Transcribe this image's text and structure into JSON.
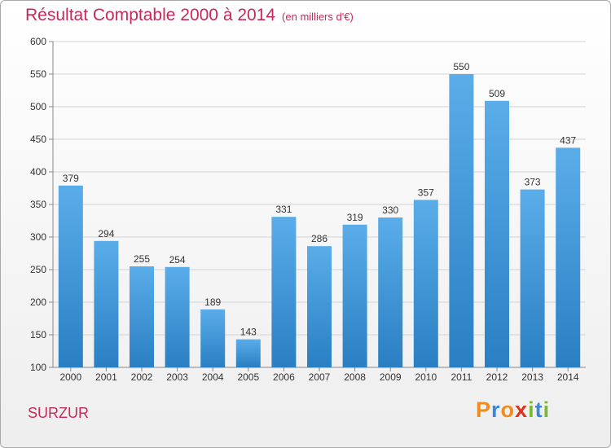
{
  "header": {
    "title": "Résultat Comptable 2000 à 2014",
    "subtitle": "(en milliers d'€)"
  },
  "footer": {
    "city": "SURZUR",
    "logo": "Proxiti"
  },
  "colors": {
    "title": "#c8285a",
    "bar_top": "#5aade9",
    "bar_bottom": "#2a7fc2",
    "logo_letters": [
      "#f08c1e",
      "#3a86d8",
      "#f08c1e",
      "#e0311e",
      "#7ab831",
      "#3a86d8",
      "#7ab831"
    ]
  },
  "chart_data": {
    "type": "bar",
    "categories": [
      "2000",
      "2001",
      "2002",
      "2003",
      "2004",
      "2005",
      "2006",
      "2007",
      "2008",
      "2009",
      "2010",
      "2011",
      "2012",
      "2013",
      "2014"
    ],
    "values": [
      379,
      294,
      255,
      254,
      189,
      143,
      331,
      286,
      319,
      330,
      357,
      550,
      509,
      373,
      437
    ],
    "ylim": [
      100,
      600
    ],
    "yticks": [
      100,
      150,
      200,
      250,
      300,
      350,
      400,
      450,
      500,
      550,
      600
    ],
    "grid": true,
    "legend": "none"
  }
}
